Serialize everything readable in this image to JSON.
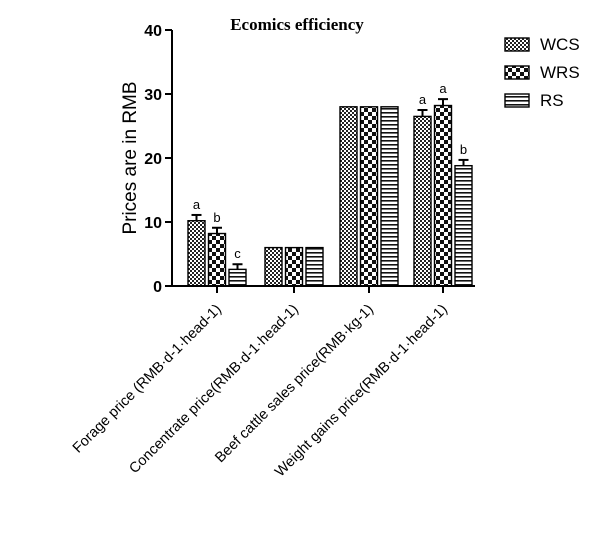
{
  "chart_data": {
    "type": "bar",
    "title": "Ecomics efficiency",
    "ylabel": "Prices are in RMB",
    "xlabel": "",
    "ylim": [
      0,
      40
    ],
    "yticks": [
      0,
      10,
      20,
      30,
      40
    ],
    "categories": [
      "Forage price (RMB·d-1·head-1)",
      "Concentrate price(RMB·d-1·head-1)",
      "Beef cattle sales price(RMB·kg-1)",
      "Weight gains price(RMB·d-1·head-1)"
    ],
    "series": [
      {
        "name": "WCS",
        "pattern": "checker-fine",
        "values": [
          10.2,
          6.0,
          28.0,
          26.5
        ],
        "errors": [
          0.9,
          0,
          0,
          1.0
        ],
        "letters": [
          "a",
          "",
          "",
          "a"
        ]
      },
      {
        "name": "WRS",
        "pattern": "checker-coarse",
        "values": [
          8.2,
          6.0,
          28.0,
          28.2
        ],
        "errors": [
          0.9,
          0,
          0,
          1.0
        ],
        "letters": [
          "b",
          "",
          "",
          "a"
        ]
      },
      {
        "name": "RS",
        "pattern": "horizontal-lines",
        "values": [
          2.6,
          6.0,
          28.0,
          18.8
        ],
        "errors": [
          0.8,
          0,
          0,
          0.9
        ],
        "letters": [
          "c",
          "",
          "",
          "b"
        ]
      }
    ],
    "legend_position": "top-right",
    "grid": false
  }
}
